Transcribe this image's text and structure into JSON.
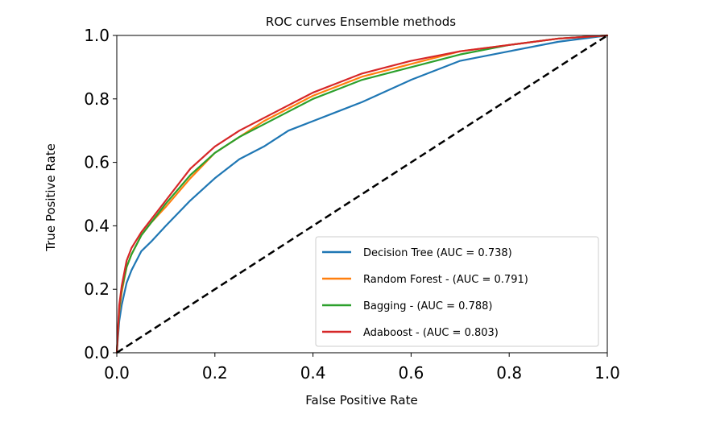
{
  "chart_data": {
    "type": "line",
    "title": "ROC curves Ensemble methods",
    "xlabel": "False Positive Rate",
    "ylabel": "True Positive Rate",
    "xlim": [
      0.0,
      1.0
    ],
    "ylim": [
      0.0,
      1.0
    ],
    "xticks": [
      "0.0",
      "0.2",
      "0.4",
      "0.6",
      "0.8",
      "1.0"
    ],
    "yticks": [
      "0.0",
      "0.2",
      "0.4",
      "0.6",
      "0.8",
      "1.0"
    ],
    "grid": false,
    "legend_position": "lower-right",
    "series": [
      {
        "name": "Decision Tree (AUC = 0.738)",
        "color": "#1f77b4",
        "x": [
          0.0,
          0.005,
          0.01,
          0.02,
          0.03,
          0.05,
          0.07,
          0.1,
          0.15,
          0.2,
          0.25,
          0.3,
          0.35,
          0.4,
          0.45,
          0.5,
          0.6,
          0.7,
          0.8,
          0.9,
          1.0
        ],
        "y": [
          0.0,
          0.1,
          0.15,
          0.22,
          0.26,
          0.32,
          0.35,
          0.4,
          0.48,
          0.55,
          0.61,
          0.65,
          0.7,
          0.73,
          0.76,
          0.79,
          0.86,
          0.92,
          0.95,
          0.98,
          1.0
        ]
      },
      {
        "name": "Random Forest - (AUC = 0.791)",
        "color": "#ff7f0e",
        "x": [
          0.0,
          0.005,
          0.01,
          0.02,
          0.03,
          0.05,
          0.07,
          0.1,
          0.15,
          0.2,
          0.25,
          0.3,
          0.35,
          0.4,
          0.45,
          0.5,
          0.6,
          0.7,
          0.8,
          0.9,
          1.0
        ],
        "y": [
          0.0,
          0.13,
          0.19,
          0.27,
          0.31,
          0.37,
          0.41,
          0.46,
          0.55,
          0.63,
          0.68,
          0.73,
          0.77,
          0.81,
          0.84,
          0.87,
          0.91,
          0.95,
          0.97,
          0.99,
          1.0
        ]
      },
      {
        "name": "Bagging - (AUC = 0.788)",
        "color": "#2ca02c",
        "x": [
          0.0,
          0.005,
          0.01,
          0.02,
          0.03,
          0.05,
          0.07,
          0.1,
          0.15,
          0.2,
          0.25,
          0.3,
          0.35,
          0.4,
          0.45,
          0.5,
          0.6,
          0.7,
          0.8,
          0.9,
          1.0
        ],
        "y": [
          0.0,
          0.14,
          0.2,
          0.27,
          0.31,
          0.37,
          0.41,
          0.47,
          0.56,
          0.63,
          0.68,
          0.72,
          0.76,
          0.8,
          0.83,
          0.86,
          0.9,
          0.94,
          0.97,
          0.99,
          1.0
        ]
      },
      {
        "name": "Adaboost - (AUC = 0.803)",
        "color": "#d62728",
        "x": [
          0.0,
          0.005,
          0.01,
          0.02,
          0.03,
          0.05,
          0.07,
          0.1,
          0.15,
          0.2,
          0.25,
          0.3,
          0.35,
          0.4,
          0.45,
          0.5,
          0.6,
          0.7,
          0.8,
          0.9,
          1.0
        ],
        "y": [
          0.0,
          0.15,
          0.21,
          0.29,
          0.33,
          0.38,
          0.42,
          0.48,
          0.58,
          0.65,
          0.7,
          0.74,
          0.78,
          0.82,
          0.85,
          0.88,
          0.92,
          0.95,
          0.97,
          0.99,
          1.0
        ]
      }
    ],
    "reference_line": {
      "style": "dashed",
      "color": "#000000",
      "x": [
        0.0,
        1.0
      ],
      "y": [
        0.0,
        1.0
      ]
    }
  }
}
